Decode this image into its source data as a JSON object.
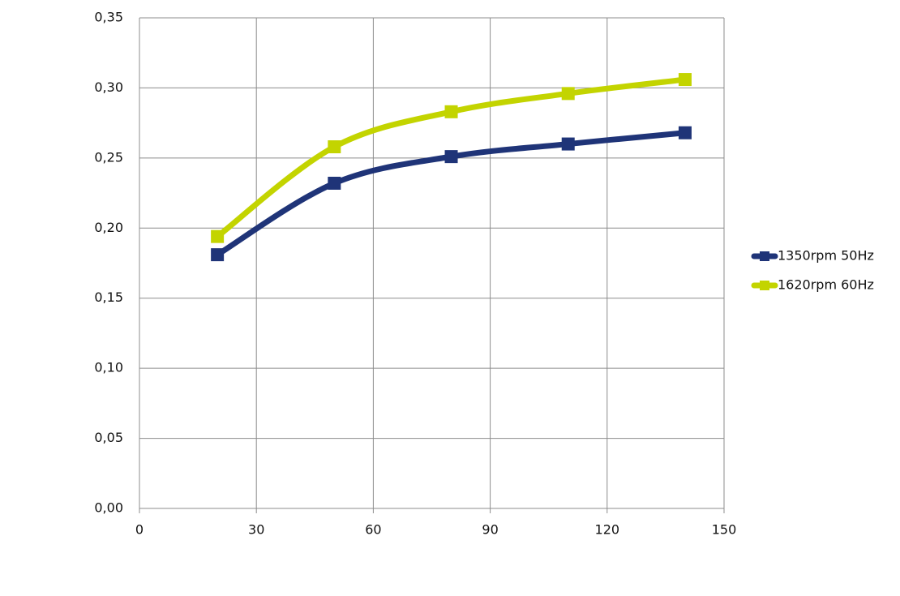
{
  "chart_data": {
    "type": "line",
    "x": [
      20,
      50,
      80,
      110,
      140
    ],
    "series": [
      {
        "name": "1350rpm 50Hz",
        "color": "#1f3478",
        "values": [
          0.181,
          0.232,
          0.251,
          0.26,
          0.268
        ]
      },
      {
        "name": "1620rpm 60Hz",
        "color": "#c3d400",
        "values": [
          0.194,
          0.258,
          0.283,
          0.296,
          0.306
        ]
      }
    ],
    "xlim": [
      0,
      150
    ],
    "xticks": [
      0,
      30,
      60,
      90,
      120,
      150
    ],
    "ylim": [
      0,
      0.35
    ],
    "yticks": [
      {
        "value": 0,
        "label": "0,00"
      },
      {
        "value": 0.05,
        "label": "0,05"
      },
      {
        "value": 0.1,
        "label": "0,10"
      },
      {
        "value": 0.15,
        "label": "0,15"
      },
      {
        "value": 0.2,
        "label": "0,20"
      },
      {
        "value": 0.25,
        "label": "0,25"
      },
      {
        "value": 0.3,
        "label": "0,30"
      },
      {
        "value": 0.35,
        "label": "0,35"
      }
    ],
    "grid": true,
    "smooth": true,
    "legend": "right"
  }
}
